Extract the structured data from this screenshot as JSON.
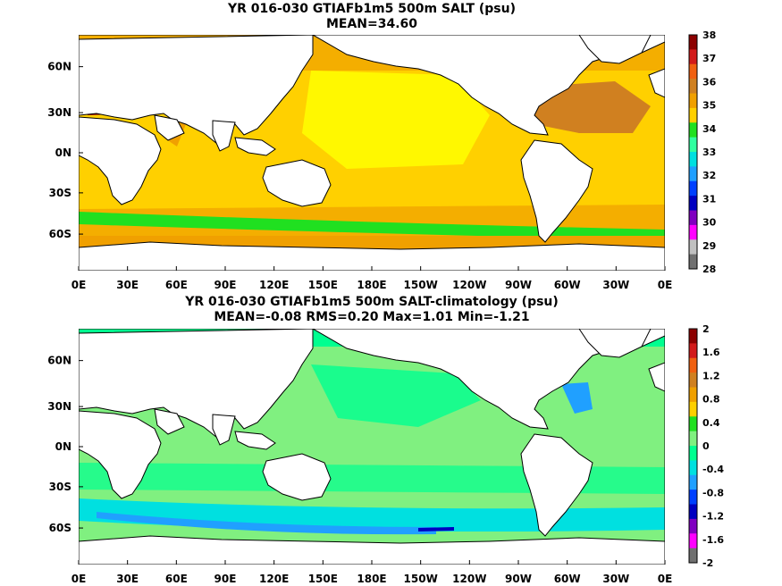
{
  "panels": [
    {
      "title_line1": "YR 016-030 GTIAFb1m5 500m SALT (psu)",
      "title_line2": "MEAN=34.60",
      "lat_labels": [
        "60N",
        "30N",
        "0N",
        "30S",
        "60S"
      ],
      "lon_labels": [
        "0E",
        "30E",
        "60E",
        "90E",
        "120E",
        "150E",
        "180E",
        "150W",
        "120W",
        "90W",
        "60W",
        "30W",
        "0E"
      ],
      "colorbar_labels": [
        "38",
        "37",
        "36",
        "35",
        "34",
        "33",
        "32",
        "31",
        "30",
        "29",
        "28"
      ],
      "colorbar_colors": [
        "#8c0000",
        "#d21a1a",
        "#f06010",
        "#d08020",
        "#f0a000",
        "#ffd000",
        "#20e020",
        "#30ffa0",
        "#00e0e0",
        "#20a0ff",
        "#0040ff",
        "#0000c0",
        "#8000c0",
        "#ff00ff",
        "#c0c0c0",
        "#707070"
      ],
      "ocean_base_color": "#ffd000"
    },
    {
      "title_line1": "YR 016-030 GTIAFb1m5 500m SALT-climatology (psu)",
      "title_line2": "MEAN=-0.08   RMS=0.20   Max=1.01   Min=-1.21",
      "lat_labels": [
        "60N",
        "30N",
        "0N",
        "30S",
        "60S"
      ],
      "lon_labels": [
        "0E",
        "30E",
        "60E",
        "90E",
        "120E",
        "150E",
        "180E",
        "150W",
        "120W",
        "90W",
        "60W",
        "30W",
        "0E"
      ],
      "colorbar_labels": [
        "2",
        "1.6",
        "1.2",
        "0.8",
        "0.4",
        "0",
        "-0.4",
        "-0.8",
        "-1.2",
        "-1.6",
        "-2"
      ],
      "colorbar_colors": [
        "#8c0000",
        "#d21a1a",
        "#f06010",
        "#d08020",
        "#f0a000",
        "#ffd000",
        "#20e020",
        "#80f080",
        "#00ff90",
        "#00e0e0",
        "#20a0ff",
        "#0040ff",
        "#0000c0",
        "#8000c0",
        "#ff00ff",
        "#707070"
      ],
      "ocean_base_color": "#80f080"
    }
  ],
  "icons": {
    "map": "world-map-mollweide-free-equirectangular"
  }
}
